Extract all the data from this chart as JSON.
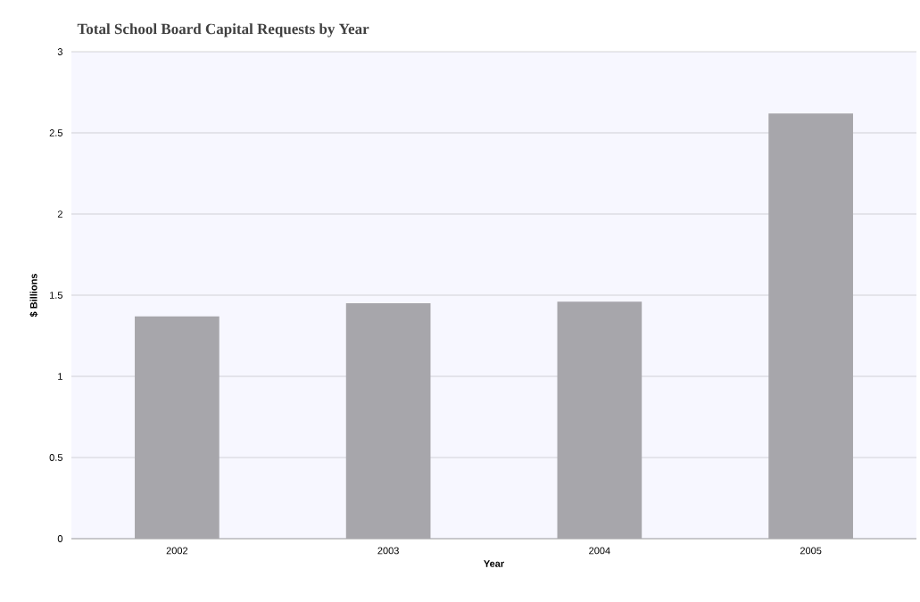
{
  "chart_data": {
    "type": "bar",
    "title": "Total School Board Capital Requests by Year",
    "categories": [
      "2002",
      "2003",
      "2004",
      "2005"
    ],
    "values": [
      1.37,
      1.45,
      1.46,
      2.62
    ],
    "color": "#a7a6ab",
    "xlabel": "Year",
    "ylabel": "$ Billions",
    "ylim": [
      0,
      3
    ],
    "yticks": [
      0,
      0.5,
      1,
      1.5,
      2,
      2.5,
      3
    ],
    "grid": "y"
  }
}
